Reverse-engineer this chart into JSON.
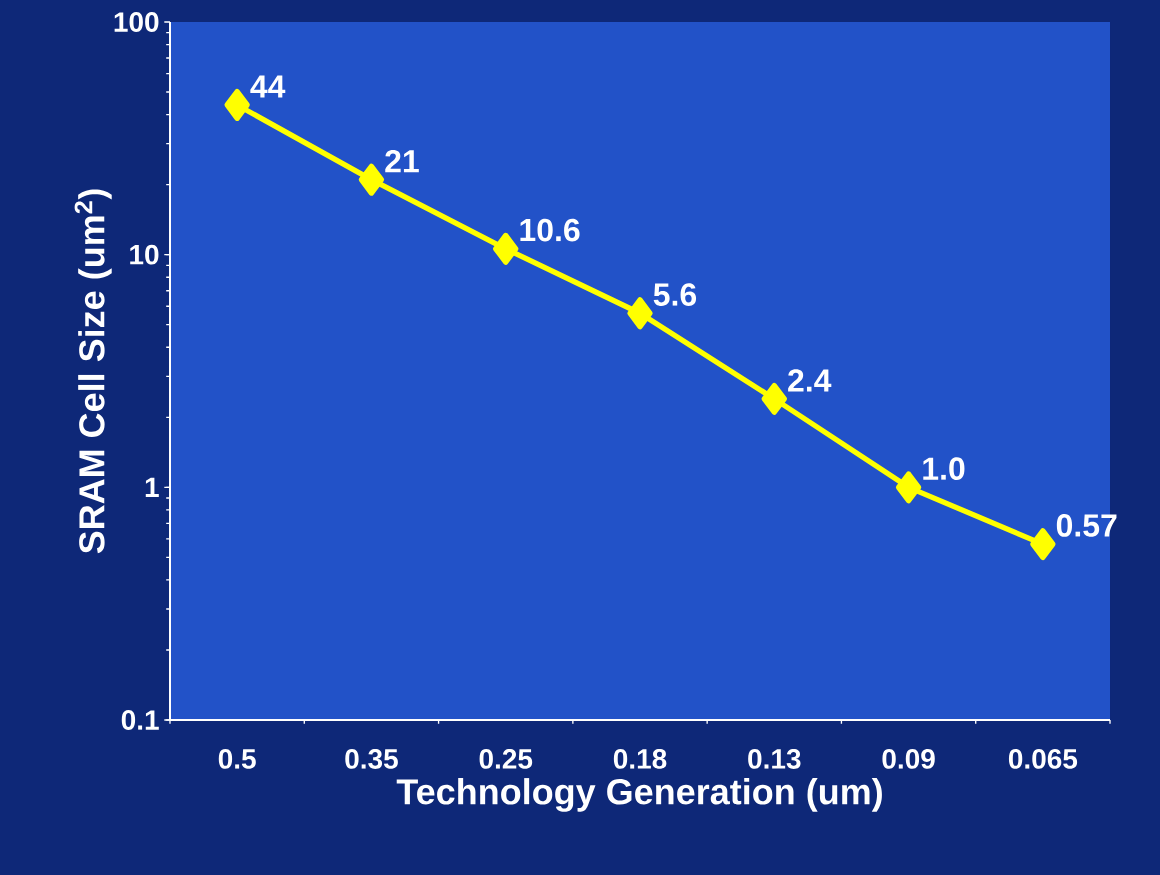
{
  "chart_data": {
    "type": "line",
    "xlabel": "Technology Generation (um)",
    "ylabel": "SRAM Cell Size (um$^{2}$)",
    "categories": [
      "0.5",
      "0.35",
      "0.25",
      "0.18",
      "0.13",
      "0.09",
      "0.065"
    ],
    "series": [
      {
        "color": "#ffff00",
        "values": [
          44,
          21,
          10.6,
          5.6,
          2.4,
          1.0,
          0.57
        ],
        "value_labels": [
          "44",
          "21",
          "10.6",
          "5.6",
          "2.4",
          "1.0",
          "0.57"
        ]
      }
    ],
    "log": "y",
    "ylim": [
      0.1,
      100
    ],
    "yticks": [
      0.1,
      1,
      10,
      100
    ],
    "marker": "diamond",
    "line_style": "solid",
    "grid": false
  }
}
